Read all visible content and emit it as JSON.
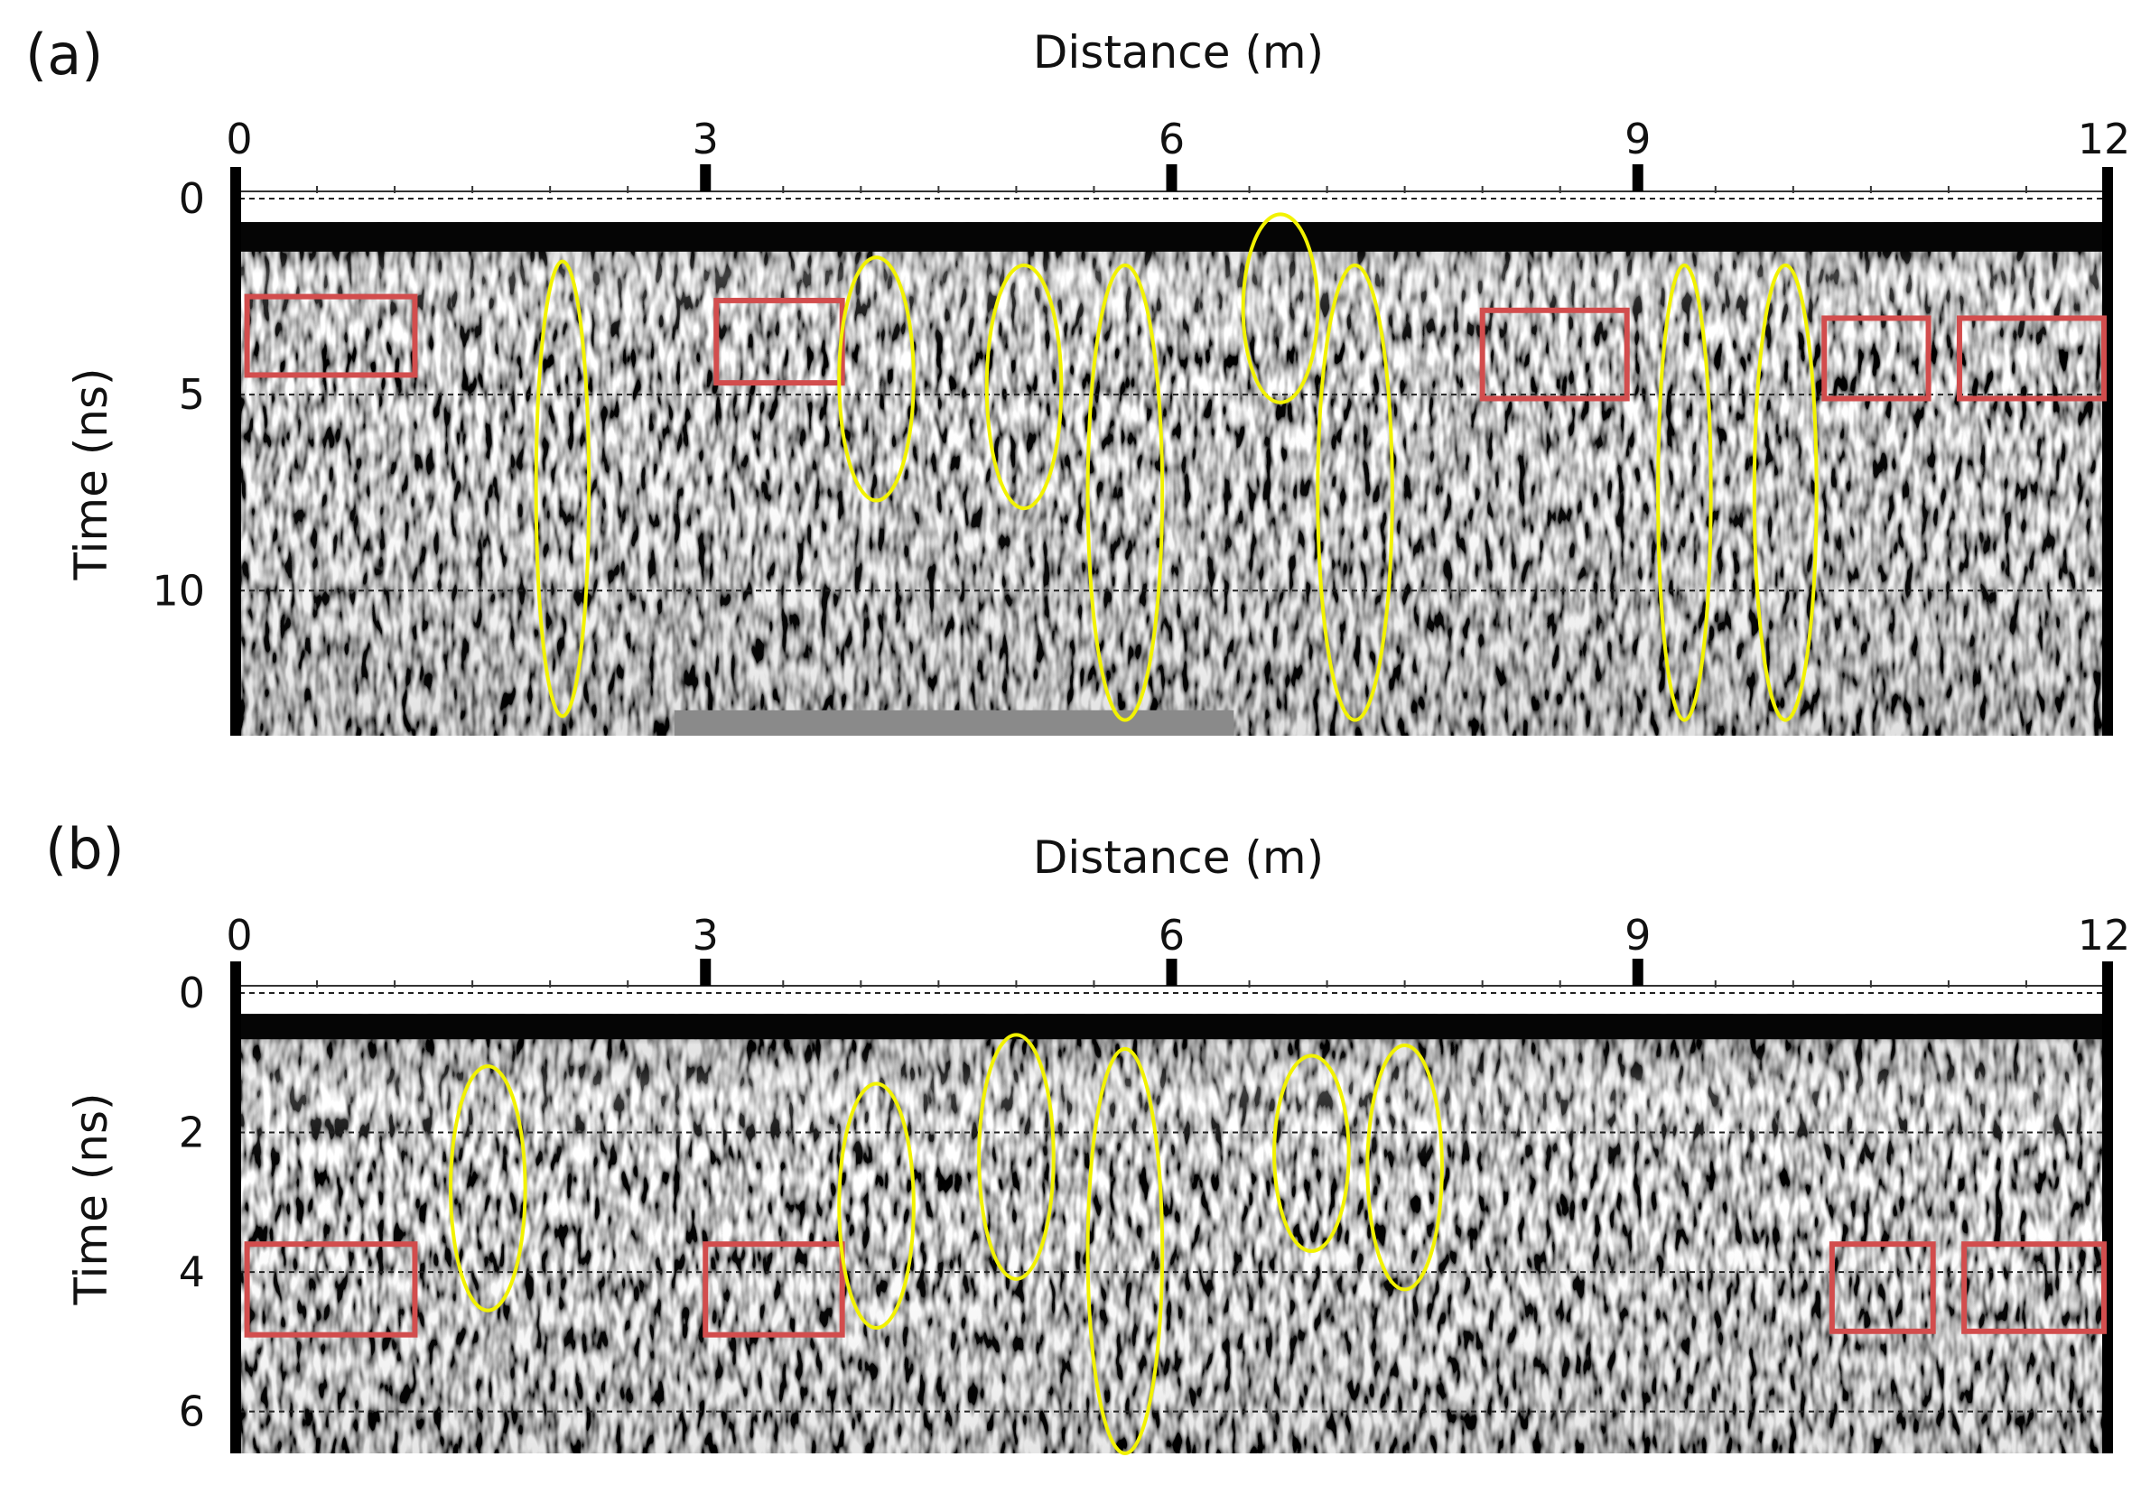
{
  "figure": {
    "panels": [
      {
        "id": "a",
        "label": "(a)",
        "x_axis_title": "Distance (m)",
        "y_axis_title": "Time (ns)",
        "x_ticks": [
          0,
          3,
          6,
          9,
          12
        ],
        "y_ticks": [
          0,
          5,
          10
        ],
        "x_range": [
          0,
          12
        ],
        "y_range": [
          0,
          13.7
        ],
        "image_start_ns": 0.6,
        "dashed_lines_ns": [
          0,
          5,
          10
        ],
        "gray_patch": {
          "x_range": [
            2.8,
            6.4
          ],
          "y_range": [
            13.05,
            13.7
          ]
        },
        "ellipses": [
          {
            "x": 2.08,
            "y": 7.4,
            "rx": 0.17,
            "ry": 5.8
          },
          {
            "x": 4.1,
            "y": 4.6,
            "rx": 0.24,
            "ry": 3.1
          },
          {
            "x": 5.05,
            "y": 4.8,
            "rx": 0.24,
            "ry": 3.1
          },
          {
            "x": 5.7,
            "y": 7.5,
            "rx": 0.24,
            "ry": 5.8
          },
          {
            "x": 6.7,
            "y": 2.8,
            "rx": 0.24,
            "ry": 2.4
          },
          {
            "x": 7.18,
            "y": 7.5,
            "rx": 0.24,
            "ry": 5.8
          },
          {
            "x": 9.3,
            "y": 7.5,
            "rx": 0.17,
            "ry": 5.8
          },
          {
            "x": 9.95,
            "y": 7.5,
            "rx": 0.2,
            "ry": 5.8
          }
        ],
        "rectangles": [
          {
            "x0": 0.05,
            "x1": 1.13,
            "y0": 2.5,
            "y1": 4.5
          },
          {
            "x0": 3.07,
            "x1": 3.88,
            "y0": 2.6,
            "y1": 4.7
          },
          {
            "x0": 8.0,
            "x1": 8.93,
            "y0": 2.85,
            "y1": 5.1
          },
          {
            "x0": 10.2,
            "x1": 10.87,
            "y0": 3.05,
            "y1": 5.1
          },
          {
            "x0": 11.07,
            "x1": 12.0,
            "y0": 3.05,
            "y1": 5.1
          }
        ]
      },
      {
        "id": "b",
        "label": "(b)",
        "x_axis_title": "Distance (m)",
        "y_axis_title": "Time (ns)",
        "x_ticks": [
          0,
          3,
          6,
          9,
          12
        ],
        "y_ticks": [
          0,
          2,
          4,
          6
        ],
        "x_range": [
          0,
          12
        ],
        "y_range": [
          0,
          6.6
        ],
        "image_start_ns": 0.3,
        "dashed_lines_ns": [
          0,
          2,
          4,
          6
        ],
        "gray_patch": null,
        "ellipses": [
          {
            "x": 1.6,
            "y": 2.8,
            "rx": 0.24,
            "ry": 1.75
          },
          {
            "x": 4.1,
            "y": 3.05,
            "rx": 0.24,
            "ry": 1.75
          },
          {
            "x": 5.0,
            "y": 2.35,
            "rx": 0.24,
            "ry": 1.75
          },
          {
            "x": 5.7,
            "y": 3.7,
            "rx": 0.24,
            "ry": 2.9
          },
          {
            "x": 6.9,
            "y": 2.3,
            "rx": 0.24,
            "ry": 1.4
          },
          {
            "x": 7.5,
            "y": 2.5,
            "rx": 0.24,
            "ry": 1.75
          }
        ],
        "rectangles": [
          {
            "x0": 0.05,
            "x1": 1.13,
            "y0": 3.6,
            "y1": 4.9
          },
          {
            "x0": 3.0,
            "x1": 3.88,
            "y0": 3.6,
            "y1": 4.9
          },
          {
            "x0": 10.25,
            "x1": 10.9,
            "y0": 3.6,
            "y1": 4.85
          },
          {
            "x0": 11.1,
            "x1": 12.0,
            "y0": 3.6,
            "y1": 4.85
          }
        ]
      }
    ],
    "colors": {
      "ellipse": "#f2f200",
      "rectangle": "#d24d4d",
      "frame": "#000000",
      "top_band": "#050505",
      "gray_patch": "#8a8a8a"
    }
  }
}
